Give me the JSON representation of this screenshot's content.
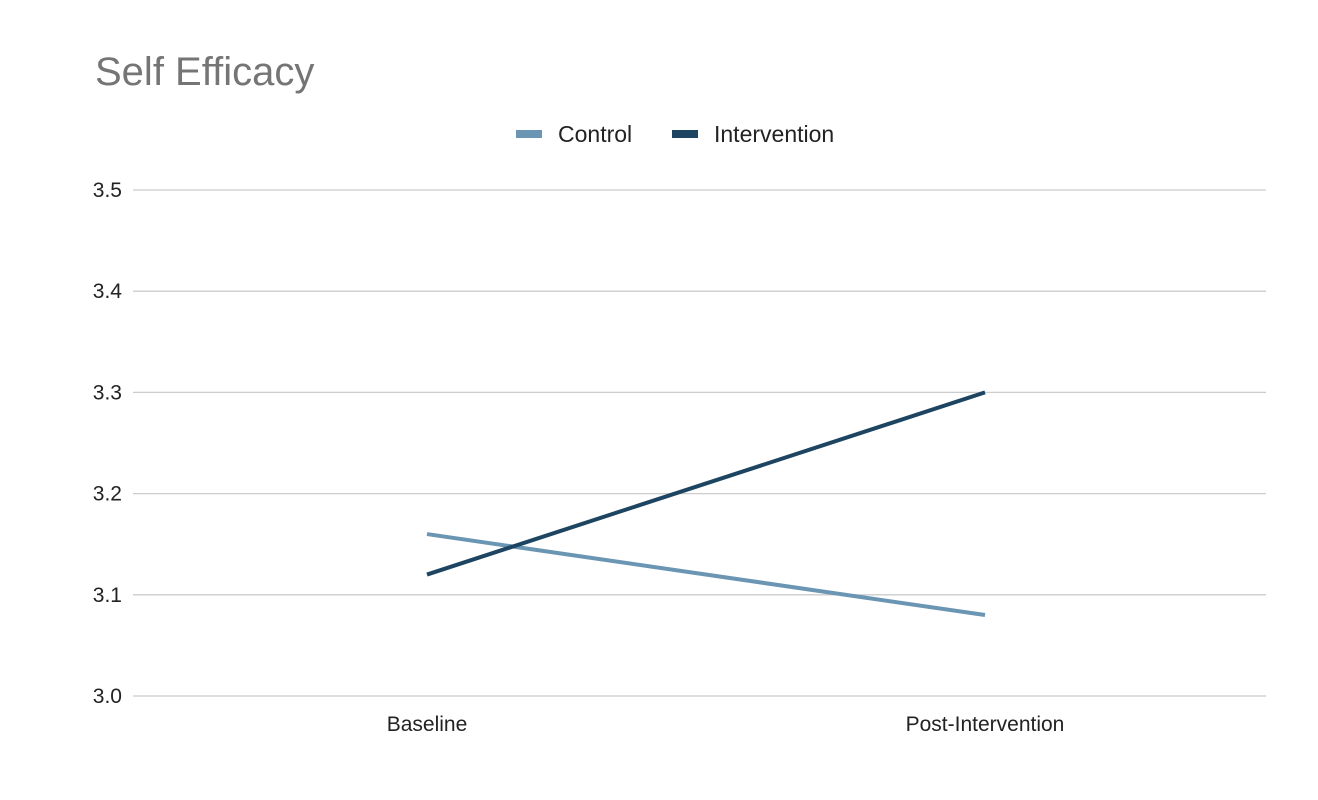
{
  "chart_data": {
    "type": "line",
    "title": "Self Efficacy",
    "xlabel": "",
    "ylabel": "",
    "categories": [
      "Baseline",
      "Post-Intervention"
    ],
    "ylim": [
      3.0,
      3.5
    ],
    "yticks": [
      "3.0",
      "3.1",
      "3.2",
      "3.3",
      "3.4",
      "3.5"
    ],
    "grid": true,
    "legend_position": "top-center",
    "series": [
      {
        "name": "Control",
        "values": [
          3.16,
          3.08
        ],
        "color": "#6a95b3"
      },
      {
        "name": "Intervention",
        "values": [
          3.12,
          3.3
        ],
        "color": "#1d4562"
      }
    ]
  }
}
